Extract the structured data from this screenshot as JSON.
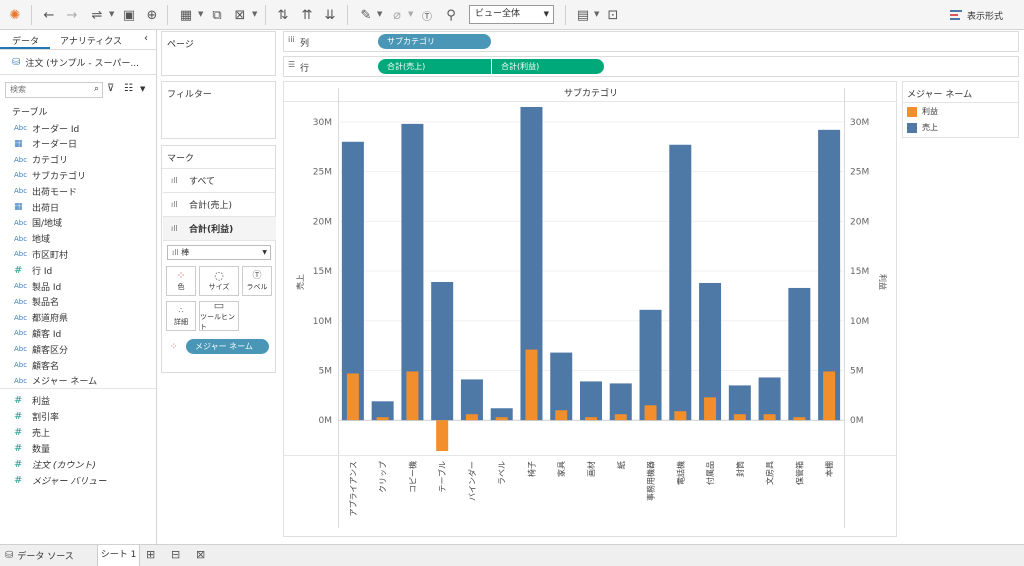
{
  "toolbar": {
    "view_select": "ビュー全体",
    "show_me": "表示形式"
  },
  "data_pane": {
    "tab_data": "データ",
    "tab_analytics": "アナリティクス",
    "datasource": "注文 (サンプル - スーパー...",
    "search_placeholder": "検索",
    "section_table": "テーブル",
    "dimensions": [
      {
        "type": "Abc",
        "name": "オーダー Id"
      },
      {
        "type": "date",
        "name": "オーダー日"
      },
      {
        "type": "Abc",
        "name": "カテゴリ"
      },
      {
        "type": "Abc",
        "name": "サブカテゴリ"
      },
      {
        "type": "Abc",
        "name": "出荷モード"
      },
      {
        "type": "date",
        "name": "出荷日"
      },
      {
        "type": "Abc",
        "name": "国/地域"
      },
      {
        "type": "Abc",
        "name": "地域"
      },
      {
        "type": "Abc",
        "name": "市区町村"
      },
      {
        "type": "#",
        "name": "行 Id"
      },
      {
        "type": "Abc",
        "name": "製品 Id"
      },
      {
        "type": "Abc",
        "name": "製品名"
      },
      {
        "type": "Abc",
        "name": "都道府県"
      },
      {
        "type": "Abc",
        "name": "顧客 Id"
      },
      {
        "type": "Abc",
        "name": "顧客区分"
      },
      {
        "type": "Abc",
        "name": "顧客名"
      },
      {
        "type": "Abc",
        "name": "メジャー ネーム"
      }
    ],
    "measures": [
      {
        "type": "#",
        "name": "利益"
      },
      {
        "type": "#",
        "name": "割引率"
      },
      {
        "type": "#",
        "name": "売上"
      },
      {
        "type": "#",
        "name": "数量"
      },
      {
        "type": "#",
        "name": "注文 (カウント)"
      },
      {
        "type": "#",
        "name": "メジャー バリュー"
      }
    ]
  },
  "cards": {
    "pages": "ページ",
    "filters": "フィルター",
    "marks": "マーク",
    "marks_all": "すべて",
    "marks_sales": "合計(売上)",
    "marks_profit": "合計(利益)",
    "mark_type": "棒",
    "btn_color": "色",
    "btn_size": "サイズ",
    "btn_label": "ラベル",
    "btn_detail": "詳細",
    "btn_tooltip": "ツールヒント",
    "color_pill": "メジャー ネーム"
  },
  "shelves": {
    "columns_label": "列",
    "rows_label": "行",
    "columns_pill": "サブカテゴリ",
    "rows_pill_1": "合計(売上)",
    "rows_pill_2": "合計(利益)"
  },
  "legend": {
    "title": "メジャー ネーム",
    "items": [
      {
        "name": "利益",
        "color": "#f28e2b"
      },
      {
        "name": "売上",
        "color": "#4e79a7"
      }
    ]
  },
  "bottom": {
    "datasource_tab": "データ ソース",
    "sheet_tab": "シート 1"
  },
  "chart_data": {
    "type": "bar",
    "title": "サブカテゴリ",
    "ylabel": "売上",
    "y2label": "利益",
    "ylim": [
      -3500000,
      32000000
    ],
    "yticks": [
      0,
      5000000,
      10000000,
      15000000,
      20000000,
      25000000,
      30000000
    ],
    "ytick_labels": [
      "0M",
      "5M",
      "10M",
      "15M",
      "20M",
      "25M",
      "30M"
    ],
    "categories": [
      "アプライアンス",
      "クリップ",
      "コピー機",
      "テーブル",
      "バインダー",
      "ラベル",
      "椅子",
      "家具",
      "画材",
      "紙",
      "事務用機器",
      "電話機",
      "付属品",
      "封筒",
      "文房具",
      "保管箱",
      "本棚"
    ],
    "series": [
      {
        "name": "売上",
        "color": "#4e79a7",
        "values": [
          28000000,
          1900000,
          29800000,
          13900000,
          4100000,
          1200000,
          31500000,
          6800000,
          3900000,
          3700000,
          11100000,
          27700000,
          13800000,
          3500000,
          4300000,
          13300000,
          29200000
        ]
      },
      {
        "name": "利益",
        "color": "#f28e2b",
        "values": [
          4700000,
          300000,
          4900000,
          -3100000,
          600000,
          300000,
          7100000,
          1000000,
          300000,
          600000,
          1500000,
          900000,
          2300000,
          600000,
          600000,
          300000,
          4900000
        ]
      }
    ],
    "grid": true,
    "legend": "right"
  }
}
